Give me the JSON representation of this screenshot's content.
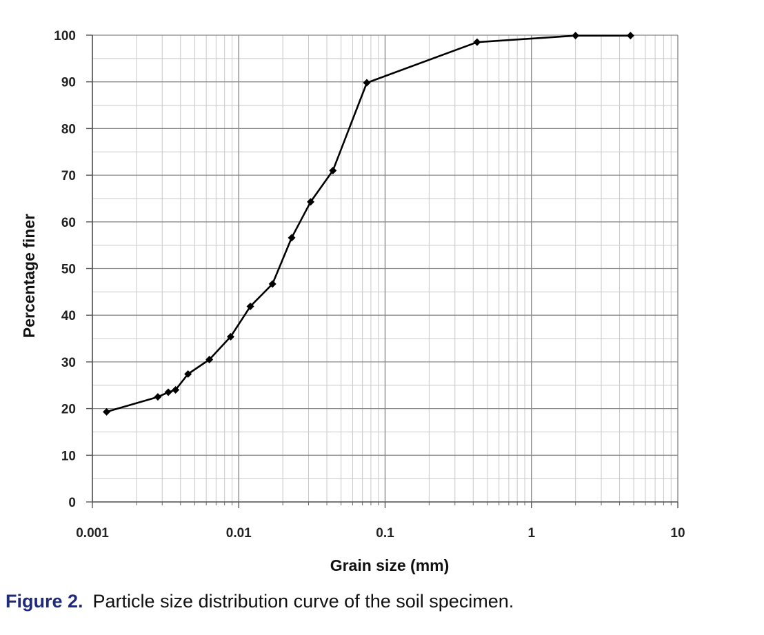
{
  "chart_data": {
    "type": "line",
    "title": "",
    "xlabel": "Grain size (mm)",
    "ylabel": "Percentage  finer",
    "x_scale": "log",
    "xlim": [
      0.001,
      10
    ],
    "ylim": [
      0,
      100
    ],
    "x_ticks": [
      0.001,
      0.01,
      0.1,
      1,
      10
    ],
    "x_tick_labels": [
      "0.001",
      "0.01",
      "0.1",
      "1",
      "10"
    ],
    "y_ticks": [
      0,
      10,
      20,
      30,
      40,
      50,
      60,
      70,
      80,
      90,
      100
    ],
    "y_tick_labels": [
      "0",
      "10",
      "20",
      "30",
      "40",
      "50",
      "60",
      "70",
      "80",
      "90",
      "100"
    ],
    "grid": true,
    "legend": "none",
    "series": [
      {
        "color": "#000000",
        "marker": "diamond",
        "x": [
          0.00125,
          0.0028,
          0.0033,
          0.0037,
          0.0045,
          0.0063,
          0.0088,
          0.012,
          0.017,
          0.023,
          0.031,
          0.044,
          0.075,
          0.425,
          2.0,
          4.75
        ],
        "y": [
          19.3,
          22.5,
          23.5,
          24.0,
          27.4,
          30.5,
          35.4,
          41.9,
          46.7,
          56.6,
          64.3,
          71.0,
          89.8,
          98.5,
          99.9,
          99.9
        ]
      }
    ]
  },
  "caption": {
    "label": "Figure 2.",
    "text": "Particle size distribution curve of the soil specimen."
  }
}
